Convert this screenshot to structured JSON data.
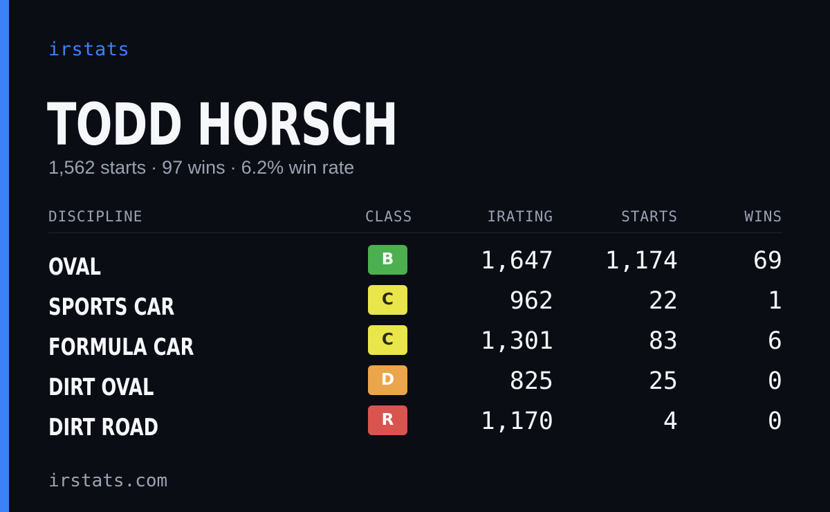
{
  "brand": "irstats",
  "driver": {
    "name": "TODD HORSCH",
    "starts_text": "1,562 starts",
    "wins_text": "97 wins",
    "win_rate_text": "6.2% win rate",
    "separator": "·"
  },
  "table": {
    "headers": {
      "discipline": "DISCIPLINE",
      "class": "CLASS",
      "irating": "IRATING",
      "starts": "STARTS",
      "wins": "WINS"
    },
    "rows": [
      {
        "discipline": "OVAL",
        "class": "B",
        "class_bg": "#4caf50",
        "class_fg": "#ffffff",
        "irating": "1,647",
        "starts": "1,174",
        "wins": "69"
      },
      {
        "discipline": "SPORTS CAR",
        "class": "C",
        "class_bg": "#e8e64a",
        "class_fg": "#2b2b10",
        "irating": "962",
        "starts": "22",
        "wins": "1"
      },
      {
        "discipline": "FORMULA CAR",
        "class": "C",
        "class_bg": "#e8e64a",
        "class_fg": "#2b2b10",
        "irating": "1,301",
        "starts": "83",
        "wins": "6"
      },
      {
        "discipline": "DIRT OVAL",
        "class": "D",
        "class_bg": "#eba54a",
        "class_fg": "#ffffff",
        "irating": "825",
        "starts": "25",
        "wins": "0"
      },
      {
        "discipline": "DIRT ROAD",
        "class": "R",
        "class_bg": "#d9534f",
        "class_fg": "#ffffff",
        "irating": "1,170",
        "starts": "4",
        "wins": "0"
      }
    ]
  },
  "footer": "irstats.com",
  "colors": {
    "accent": "#3b82f6",
    "background": "#0a0d14",
    "text": "#f5f7fa",
    "muted": "#9aa3b2"
  }
}
